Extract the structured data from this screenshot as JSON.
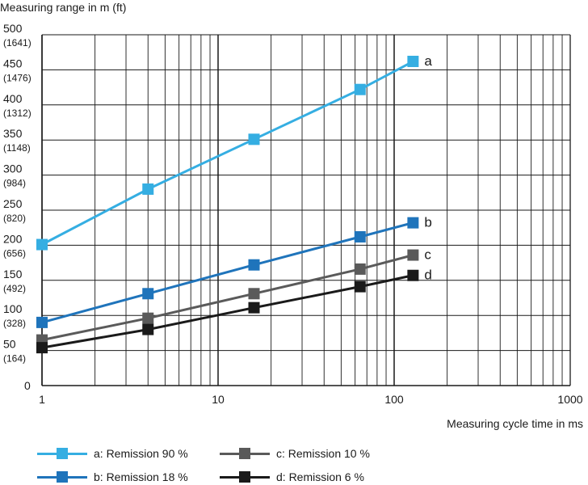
{
  "chart_data": {
    "type": "line",
    "ylabel": "Measuring range in m (ft)",
    "xlabel": "Measuring cycle time in ms",
    "x_scale": "log",
    "xlim": [
      1,
      1000
    ],
    "ylim": [
      0,
      500
    ],
    "grid": true,
    "x_ticks": [
      "1",
      "10",
      "100",
      "1000"
    ],
    "y_ticks": [
      {
        "value": 0,
        "label": "0",
        "sub": ""
      },
      {
        "value": 50,
        "label": "50",
        "sub": "(164)"
      },
      {
        "value": 100,
        "label": "100",
        "sub": "(328)"
      },
      {
        "value": 150,
        "label": "150",
        "sub": "(492)"
      },
      {
        "value": 200,
        "label": "200",
        "sub": "(656)"
      },
      {
        "value": 250,
        "label": "250",
        "sub": "(820)"
      },
      {
        "value": 300,
        "label": "300",
        "sub": "(984)"
      },
      {
        "value": 350,
        "label": "350",
        "sub": "(1148)"
      },
      {
        "value": 400,
        "label": "400",
        "sub": "(1312)"
      },
      {
        "value": 450,
        "label": "450",
        "sub": "(1476)"
      },
      {
        "value": 500,
        "label": "500",
        "sub": "(1641)"
      }
    ],
    "x": [
      1,
      4,
      16,
      64,
      128
    ],
    "series": [
      {
        "name": "a: Remission 90 %",
        "tag": "a",
        "color": "#35aee2",
        "values": [
          201,
          280,
          351,
          422,
          462
        ]
      },
      {
        "name": "b: Remission 18 %",
        "tag": "b",
        "color": "#1f74bb",
        "values": [
          90,
          131,
          172,
          212,
          232
        ]
      },
      {
        "name": "c: Remission 10 %",
        "tag": "c",
        "color": "#5a5a5a",
        "values": [
          65,
          96,
          131,
          166,
          186
        ]
      },
      {
        "name": "d: Remission 6 %",
        "tag": "d",
        "color": "#1a1a1a",
        "values": [
          54,
          80,
          111,
          141,
          157
        ]
      }
    ]
  }
}
